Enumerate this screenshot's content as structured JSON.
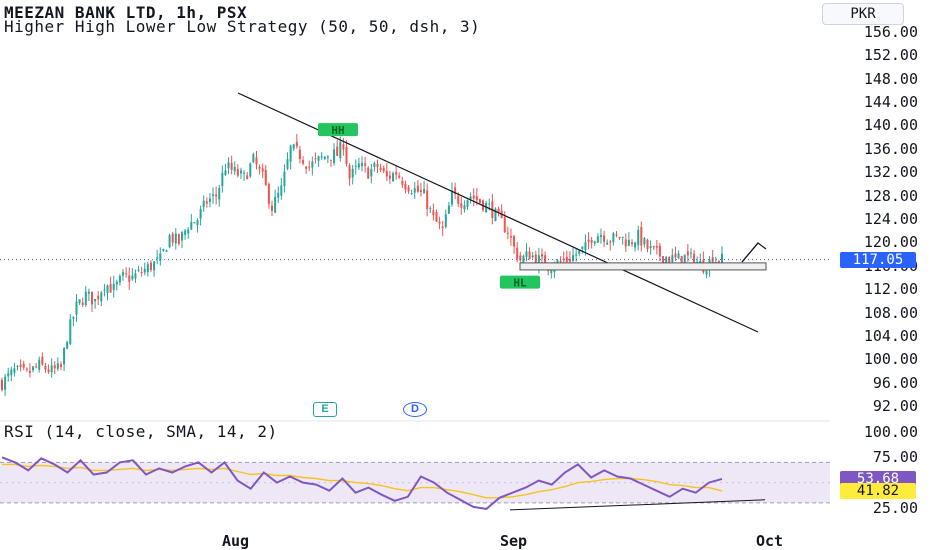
{
  "header": {
    "symbol": "MEEZAN BANK LTD, 1h, PSX",
    "strategy": "Higher High Lower Low Strategy (50, 50, dsh, 3)"
  },
  "currency_button": "PKR",
  "price_badge": {
    "value": "117.05",
    "color": "#2962ff"
  },
  "rsi_header": "RSI (14, close, SMA, 14, 2)",
  "rsi_badges": [
    {
      "value": "53.68",
      "color": "#7e57c2",
      "text_color": "#ffffff"
    },
    {
      "value": "41.82",
      "color": "#ffeb3b",
      "text_color": "#131722"
    }
  ],
  "markers": [
    {
      "label": "E",
      "color": "#26a69a",
      "icon": "earnings-icon"
    },
    {
      "label": "D",
      "color": "#2962ff",
      "icon": "dividend-icon"
    }
  ],
  "colors": {
    "up": "#26a69a",
    "down": "#ef5350",
    "rsi": "#7e57c2",
    "rsi_ma": "#f7c31f",
    "band": "#ede7f6"
  },
  "chart_data": [
    {
      "type": "candlestick",
      "title": "MEEZAN BANK LTD, 1h, PSX",
      "yticks": [
        "156.00",
        "152.00",
        "148.00",
        "144.00",
        "140.00",
        "136.00",
        "132.00",
        "128.00",
        "124.00",
        "120.00",
        "116.00",
        "112.00",
        "108.00",
        "104.00",
        "100.00",
        "96.00",
        "92.00"
      ],
      "xticks": [
        "Aug",
        "Sep",
        "Oct"
      ],
      "ylim": [
        90,
        158
      ],
      "last_price": 117.05,
      "close_path": [
        {
          "x": 0,
          "y": 96
        },
        {
          "x": 4,
          "y": 98
        },
        {
          "x": 8,
          "y": 97.5
        },
        {
          "x": 12,
          "y": 99
        },
        {
          "x": 16,
          "y": 98
        },
        {
          "x": 19,
          "y": 98.5
        },
        {
          "x": 21,
          "y": 104
        },
        {
          "x": 24,
          "y": 109
        },
        {
          "x": 27,
          "y": 111
        },
        {
          "x": 30,
          "y": 110
        },
        {
          "x": 33,
          "y": 113
        },
        {
          "x": 36,
          "y": 112
        },
        {
          "x": 39,
          "y": 114
        },
        {
          "x": 42,
          "y": 114
        },
        {
          "x": 45,
          "y": 115
        },
        {
          "x": 48,
          "y": 116
        },
        {
          "x": 51,
          "y": 117
        },
        {
          "x": 54,
          "y": 121
        },
        {
          "x": 57,
          "y": 120
        },
        {
          "x": 60,
          "y": 123
        },
        {
          "x": 63,
          "y": 124
        },
        {
          "x": 66,
          "y": 127
        },
        {
          "x": 69,
          "y": 128
        },
        {
          "x": 72,
          "y": 133
        },
        {
          "x": 75,
          "y": 132
        },
        {
          "x": 78,
          "y": 131
        },
        {
          "x": 81,
          "y": 134
        },
        {
          "x": 84,
          "y": 131
        },
        {
          "x": 87,
          "y": 126
        },
        {
          "x": 90,
          "y": 129
        },
        {
          "x": 93,
          "y": 136
        },
        {
          "x": 96,
          "y": 135
        },
        {
          "x": 99,
          "y": 133
        },
        {
          "x": 102,
          "y": 134
        },
        {
          "x": 105,
          "y": 135
        },
        {
          "x": 108,
          "y": 135
        },
        {
          "x": 110,
          "y": 137
        },
        {
          "x": 112,
          "y": 131
        },
        {
          "x": 115,
          "y": 133
        },
        {
          "x": 118,
          "y": 132
        },
        {
          "x": 121,
          "y": 133
        },
        {
          "x": 124,
          "y": 131
        },
        {
          "x": 127,
          "y": 132
        },
        {
          "x": 130,
          "y": 130
        },
        {
          "x": 133,
          "y": 129
        },
        {
          "x": 136,
          "y": 128
        },
        {
          "x": 139,
          "y": 124
        },
        {
          "x": 142,
          "y": 122
        },
        {
          "x": 145,
          "y": 128
        },
        {
          "x": 148,
          "y": 127
        },
        {
          "x": 151,
          "y": 128
        },
        {
          "x": 154,
          "y": 127
        },
        {
          "x": 157,
          "y": 126
        },
        {
          "x": 160,
          "y": 124
        },
        {
          "x": 163,
          "y": 122
        },
        {
          "x": 165,
          "y": 119
        },
        {
          "x": 167,
          "y": 117
        },
        {
          "x": 170,
          "y": 118
        },
        {
          "x": 173,
          "y": 117
        },
        {
          "x": 176,
          "y": 116
        },
        {
          "x": 179,
          "y": 116.5
        },
        {
          "x": 182,
          "y": 117
        },
        {
          "x": 185,
          "y": 118
        },
        {
          "x": 188,
          "y": 119
        },
        {
          "x": 190,
          "y": 121
        },
        {
          "x": 193,
          "y": 121.5
        },
        {
          "x": 196,
          "y": 120.5
        },
        {
          "x": 199,
          "y": 121
        },
        {
          "x": 202,
          "y": 120
        },
        {
          "x": 205,
          "y": 121
        },
        {
          "x": 208,
          "y": 119
        },
        {
          "x": 211,
          "y": 118
        },
        {
          "x": 214,
          "y": 117.5
        },
        {
          "x": 217,
          "y": 117
        },
        {
          "x": 220,
          "y": 117.5
        },
        {
          "x": 223,
          "y": 117
        },
        {
          "x": 226,
          "y": 116
        },
        {
          "x": 229,
          "y": 117
        },
        {
          "x": 232,
          "y": 117.05
        }
      ],
      "annotations": [
        {
          "label": "HH",
          "price": 138.5,
          "color": "#22c55e"
        },
        {
          "label": "HL",
          "price": 114.5,
          "color": "#22c55e"
        }
      ]
    },
    {
      "type": "line",
      "title": "RSI (14, close, SMA, 14, 2)",
      "yticks": [
        "100.00",
        "75.00",
        "25.00"
      ],
      "ylim": [
        15,
        100
      ],
      "band": [
        30,
        70
      ],
      "series": [
        {
          "name": "RSI",
          "values": [
            75,
            70,
            62,
            74,
            68,
            60,
            72,
            58,
            60,
            70,
            72,
            58,
            64,
            60,
            66,
            70,
            60,
            70,
            52,
            44,
            60,
            50,
            56,
            50,
            48,
            42,
            54,
            40,
            45,
            38,
            32,
            36,
            56,
            50,
            40,
            33,
            26,
            24,
            35,
            40,
            45,
            52,
            48,
            60,
            68,
            55,
            62,
            56,
            54,
            48,
            42,
            36,
            44,
            40,
            50,
            53.68
          ],
          "color": "#7e57c2"
        },
        {
          "name": "RSI-based MA",
          "values": [
            68,
            68,
            66,
            67,
            66,
            64,
            65,
            62,
            62,
            63,
            64,
            62,
            63,
            62,
            63,
            64,
            63,
            64,
            61,
            58,
            59,
            57,
            57,
            55,
            54,
            52,
            52,
            50,
            49,
            47,
            44,
            42,
            45,
            45,
            43,
            41,
            38,
            35,
            35,
            36,
            38,
            41,
            43,
            46,
            50,
            51,
            53,
            54,
            54,
            53,
            51,
            48,
            47,
            45,
            45,
            41.82
          ],
          "color": "#f7c31f"
        }
      ],
      "last_values": [
        53.68,
        41.82
      ]
    }
  ]
}
